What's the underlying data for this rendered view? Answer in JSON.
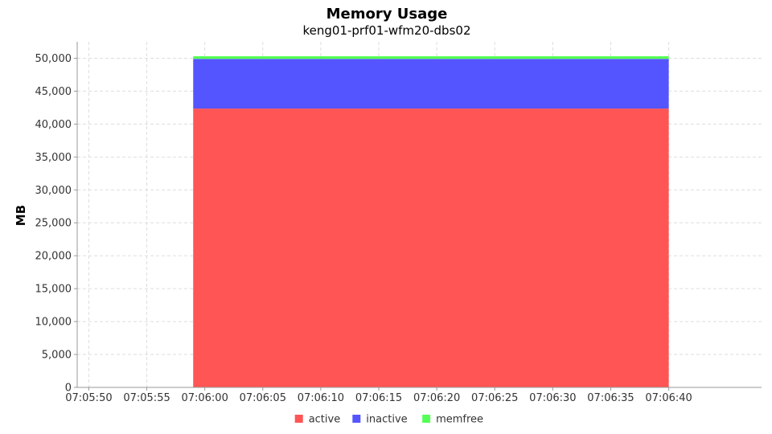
{
  "chart_data": {
    "type": "area",
    "stacked": true,
    "title": "Memory Usage",
    "subtitle": "keng01-prf01-wfm20-dbs02",
    "xlabel": "",
    "ylabel": "MB",
    "x_ticks": [
      "07:05:50",
      "07:05:55",
      "07:06:00",
      "07:06:05",
      "07:06:10",
      "07:06:15",
      "07:06:20",
      "07:06:25",
      "07:06:30",
      "07:06:35",
      "07:06:40"
    ],
    "x_start_ticks": "07:05:50",
    "x_tick_step_seconds": 5,
    "xlim_seconds": [
      -1,
      58
    ],
    "x": [
      "07:05:59",
      "07:06:40"
    ],
    "ylim": [
      0,
      52500
    ],
    "y_ticks": [
      0,
      5000,
      10000,
      15000,
      20000,
      25000,
      30000,
      35000,
      40000,
      45000,
      50000
    ],
    "grid": true,
    "legend_position": "bottom",
    "series": [
      {
        "name": "active",
        "color": "#ff5555",
        "values": [
          42350,
          42350
        ]
      },
      {
        "name": "inactive",
        "color": "#5555ff",
        "values": [
          7550,
          7550
        ]
      },
      {
        "name": "memfree",
        "color": "#55ff55",
        "values": [
          400,
          400
        ]
      }
    ]
  }
}
